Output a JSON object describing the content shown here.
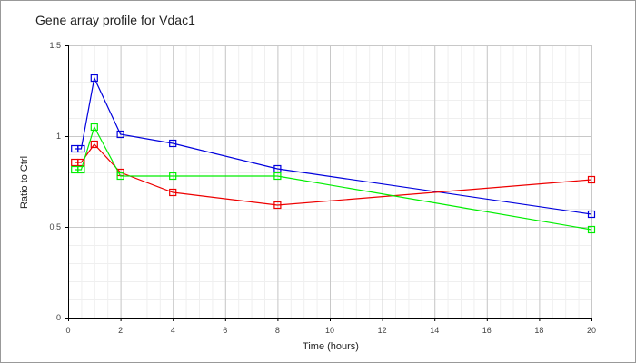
{
  "chart_data": {
    "type": "line",
    "title": "Gene array profile for Vdac1",
    "xlabel": "Time (hours)",
    "ylabel": "Ratio to Ctrl",
    "xlim": [
      0,
      20
    ],
    "ylim": [
      0,
      1.5
    ],
    "xticks": [
      0,
      2,
      4,
      6,
      8,
      10,
      12,
      14,
      16,
      18,
      20
    ],
    "yticks": [
      0,
      0.5,
      1,
      1.5
    ],
    "ytick_labels": [
      "0",
      "0.5",
      "1",
      "1.5"
    ],
    "grid": true,
    "x": [
      0.25,
      0.5,
      1,
      2,
      4,
      8,
      20
    ],
    "series": [
      {
        "name": "blue",
        "color": "#0000dd",
        "values": [
          0.93,
          0.93,
          1.32,
          1.01,
          0.96,
          0.82,
          0.57
        ]
      },
      {
        "name": "red",
        "color": "#ee0000",
        "values": [
          0.855,
          0.855,
          0.955,
          0.8,
          0.69,
          0.62,
          0.76
        ]
      },
      {
        "name": "green",
        "color": "#00ee00",
        "values": [
          0.815,
          0.815,
          1.05,
          0.78,
          0.78,
          0.78,
          0.485
        ]
      }
    ]
  }
}
